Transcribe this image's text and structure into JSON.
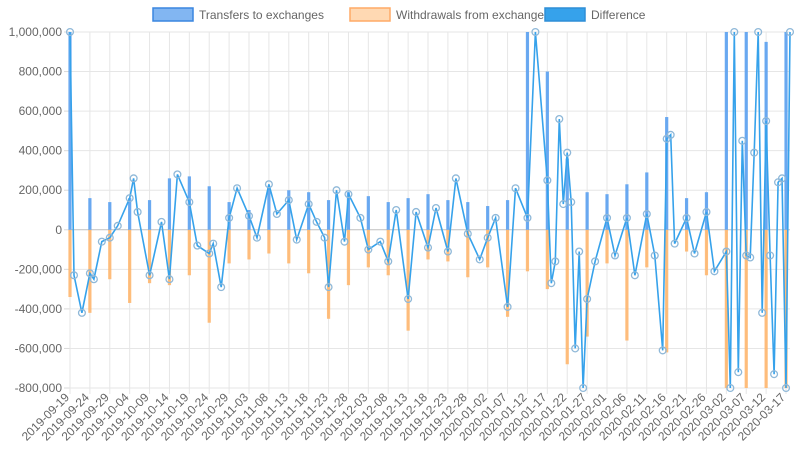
{
  "chart_data": {
    "type": "bar",
    "title": "",
    "xlabel": "",
    "ylabel": "",
    "ylim": [
      -800000,
      1000000
    ],
    "y_ticks": [
      -800000,
      -600000,
      -400000,
      -200000,
      0,
      200000,
      400000,
      600000,
      800000,
      1000000
    ],
    "y_tick_labels": [
      "-800,000",
      "-600,000",
      "-400,000",
      "-200,000",
      "0",
      "200,000",
      "400,000",
      "600,000",
      "800,000",
      "1,000,000"
    ],
    "x_tick_labels": [
      "2019-09-19",
      "2019-09-24",
      "2019-09-29",
      "2019-10-04",
      "2019-10-09",
      "2019-10-14",
      "2019-10-19",
      "2019-10-24",
      "2019-10-29",
      "2019-11-03",
      "2019-11-08",
      "2019-11-13",
      "2019-11-18",
      "2019-11-23",
      "2019-11-28",
      "2019-12-03",
      "2019-12-08",
      "2019-12-13",
      "2019-12-18",
      "2019-12-23",
      "2019-12-28",
      "2020-01-02",
      "2020-01-07",
      "2020-01-12",
      "2020-01-17",
      "2020-01-22",
      "2020-01-27",
      "2020-02-01",
      "2020-02-06",
      "2020-02-11",
      "2020-02-16",
      "2020-02-21",
      "2020-02-26",
      "2020-03-02",
      "2020-03-07",
      "2020-03-12",
      "2020-03-17"
    ],
    "x_tick_dates": [
      "2019-09-19",
      "2019-09-24",
      "2019-09-29",
      "2019-10-04",
      "2019-10-09",
      "2019-10-14",
      "2019-10-19",
      "2019-10-24",
      "2019-10-29",
      "2019-11-03",
      "2019-11-08",
      "2019-11-13",
      "2019-11-18",
      "2019-11-23",
      "2019-11-28",
      "2019-12-03",
      "2019-12-08",
      "2019-12-13",
      "2019-12-18",
      "2019-12-23",
      "2019-12-28",
      "2020-01-02",
      "2020-01-07",
      "2020-01-12",
      "2020-01-17",
      "2020-01-22",
      "2020-01-27",
      "2020-02-01",
      "2020-02-06",
      "2020-02-11",
      "2020-02-16",
      "2020-02-21",
      "2020-02-26",
      "2020-03-02",
      "2020-03-07",
      "2020-03-12",
      "2020-03-17"
    ],
    "legend_position": "top",
    "grid": true,
    "series": [
      {
        "name": "Transfers to exchanges",
        "kind": "bar",
        "color": "#5aa0f0",
        "dates": [
          "2019-09-19",
          "2019-09-24",
          "2019-09-29",
          "2019-10-04",
          "2019-10-09",
          "2019-10-14",
          "2019-10-19",
          "2019-10-24",
          "2019-10-29",
          "2019-11-03",
          "2019-11-08",
          "2019-11-13",
          "2019-11-18",
          "2019-11-23",
          "2019-11-28",
          "2019-12-03",
          "2019-12-08",
          "2019-12-13",
          "2019-12-18",
          "2019-12-23",
          "2019-12-28",
          "2020-01-02",
          "2020-01-07",
          "2020-01-12",
          "2020-01-17",
          "2020-01-22",
          "2020-01-27",
          "2020-02-01",
          "2020-02-06",
          "2020-02-11",
          "2020-02-16",
          "2020-02-21",
          "2020-02-26",
          "2020-03-02",
          "2020-03-07",
          "2020-03-12",
          "2020-03-17"
        ],
        "values": [
          1000000,
          160000,
          140000,
          160000,
          150000,
          260000,
          270000,
          220000,
          140000,
          100000,
          210000,
          200000,
          190000,
          150000,
          190000,
          170000,
          140000,
          160000,
          180000,
          150000,
          140000,
          120000,
          150000,
          1000000,
          800000,
          360000,
          190000,
          180000,
          230000,
          290000,
          570000,
          160000,
          190000,
          1000000,
          1000000,
          950000,
          1000000
        ]
      },
      {
        "name": "Withdrawals from exchanges",
        "kind": "bar",
        "color": "#ffb366",
        "dates": [
          "2019-09-19",
          "2019-09-24",
          "2019-09-29",
          "2019-10-04",
          "2019-10-09",
          "2019-10-14",
          "2019-10-19",
          "2019-10-24",
          "2019-10-29",
          "2019-11-03",
          "2019-11-08",
          "2019-11-13",
          "2019-11-18",
          "2019-11-23",
          "2019-11-28",
          "2019-12-03",
          "2019-12-08",
          "2019-12-13",
          "2019-12-18",
          "2019-12-23",
          "2019-12-28",
          "2020-01-02",
          "2020-01-07",
          "2020-01-12",
          "2020-01-17",
          "2020-01-22",
          "2020-01-27",
          "2020-02-01",
          "2020-02-06",
          "2020-02-11",
          "2020-02-16",
          "2020-02-21",
          "2020-02-26",
          "2020-03-02",
          "2020-03-07",
          "2020-03-12",
          "2020-03-17"
        ],
        "values": [
          -340000,
          -420000,
          -250000,
          -370000,
          -270000,
          -280000,
          -230000,
          -470000,
          -170000,
          -150000,
          -120000,
          -170000,
          -220000,
          -450000,
          -280000,
          -190000,
          -230000,
          -510000,
          -150000,
          -160000,
          -240000,
          -190000,
          -440000,
          -210000,
          -300000,
          -680000,
          -540000,
          -170000,
          -560000,
          -190000,
          -620000,
          -110000,
          -230000,
          -800000,
          -800000,
          -800000,
          -800000
        ]
      },
      {
        "name": "Difference",
        "kind": "line",
        "color": "#36a2eb",
        "point_color": "#8fb8d8",
        "dates": [
          "2019-09-19",
          "2019-09-20",
          "2019-09-22",
          "2019-09-24",
          "2019-09-25",
          "2019-09-27",
          "2019-09-29",
          "2019-10-01",
          "2019-10-04",
          "2019-10-05",
          "2019-10-06",
          "2019-10-09",
          "2019-10-12",
          "2019-10-14",
          "2019-10-16",
          "2019-10-19",
          "2019-10-21",
          "2019-10-24",
          "2019-10-25",
          "2019-10-27",
          "2019-10-29",
          "2019-10-31",
          "2019-11-03",
          "2019-11-05",
          "2019-11-08",
          "2019-11-10",
          "2019-11-13",
          "2019-11-15",
          "2019-11-18",
          "2019-11-20",
          "2019-11-22",
          "2019-11-23",
          "2019-11-25",
          "2019-11-27",
          "2019-11-28",
          "2019-12-01",
          "2019-12-03",
          "2019-12-06",
          "2019-12-08",
          "2019-12-10",
          "2019-12-13",
          "2019-12-15",
          "2019-12-18",
          "2019-12-20",
          "2019-12-23",
          "2019-12-25",
          "2019-12-28",
          "2019-12-31",
          "2020-01-02",
          "2020-01-04",
          "2020-01-07",
          "2020-01-09",
          "2020-01-12",
          "2020-01-14",
          "2020-01-17",
          "2020-01-18",
          "2020-01-19",
          "2020-01-20",
          "2020-01-21",
          "2020-01-22",
          "2020-01-23",
          "2020-01-24",
          "2020-01-25",
          "2020-01-26",
          "2020-01-27",
          "2020-01-29",
          "2020-02-01",
          "2020-02-03",
          "2020-02-06",
          "2020-02-08",
          "2020-02-11",
          "2020-02-13",
          "2020-02-15",
          "2020-02-16",
          "2020-02-17",
          "2020-02-18",
          "2020-02-21",
          "2020-02-23",
          "2020-02-26",
          "2020-02-28",
          "2020-03-02",
          "2020-03-03",
          "2020-03-04",
          "2020-03-05",
          "2020-03-06",
          "2020-03-07",
          "2020-03-08",
          "2020-03-09",
          "2020-03-10",
          "2020-03-11",
          "2020-03-12",
          "2020-03-13",
          "2020-03-14",
          "2020-03-15",
          "2020-03-16",
          "2020-03-17",
          "2020-03-18"
        ],
        "values": [
          1000000,
          -230000,
          -420000,
          -220000,
          -250000,
          -60000,
          -40000,
          20000,
          160000,
          260000,
          90000,
          -230000,
          40000,
          -250000,
          280000,
          140000,
          -80000,
          -120000,
          -70000,
          -290000,
          60000,
          210000,
          70000,
          -40000,
          230000,
          80000,
          150000,
          -50000,
          130000,
          40000,
          -40000,
          -290000,
          200000,
          -60000,
          180000,
          60000,
          -100000,
          -60000,
          -160000,
          100000,
          -350000,
          90000,
          -90000,
          110000,
          -110000,
          260000,
          -20000,
          -150000,
          -40000,
          60000,
          -390000,
          210000,
          60000,
          1000000,
          250000,
          -270000,
          -160000,
          560000,
          130000,
          390000,
          140000,
          -600000,
          -110000,
          -800000,
          -350000,
          -160000,
          60000,
          -130000,
          60000,
          -230000,
          80000,
          -130000,
          -610000,
          460000,
          480000,
          -70000,
          60000,
          -120000,
          90000,
          -210000,
          -110000,
          -800000,
          1000000,
          -720000,
          450000,
          -130000,
          -140000,
          390000,
          1000000,
          -420000,
          550000,
          -130000,
          -730000,
          240000,
          260000,
          -800000,
          1000000
        ]
      }
    ]
  }
}
